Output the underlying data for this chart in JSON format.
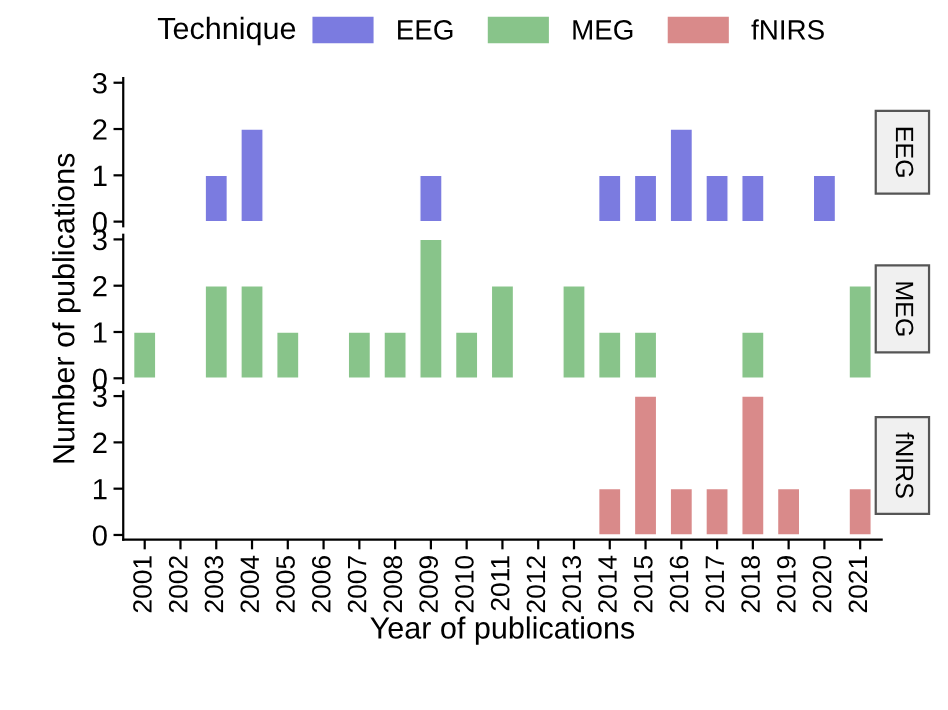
{
  "chart_data": [
    {
      "type": "bar",
      "legend_title": "Technique",
      "legend": "top",
      "categories": [
        "2001",
        "2002",
        "2003",
        "2004",
        "2005",
        "2006",
        "2007",
        "2008",
        "2009",
        "2010",
        "2011",
        "2012",
        "2013",
        "2014",
        "2015",
        "2016",
        "2017",
        "2018",
        "2019",
        "2020",
        "2021"
      ],
      "series": [
        {
          "name": "EEG",
          "color": "#7b7be0",
          "values": [
            null,
            null,
            1,
            2,
            null,
            null,
            null,
            null,
            1,
            null,
            null,
            null,
            null,
            1,
            1,
            2,
            1,
            1,
            null,
            1,
            null
          ]
        }
      ],
      "ylim": [
        -0.1,
        3.1
      ],
      "yticks": [
        0,
        1,
        2,
        3
      ],
      "tick_labels": "y",
      "grid": false
    },
    {
      "type": "bar",
      "ylabel": "Number of publications",
      "categories": [
        "2001",
        "2002",
        "2003",
        "2004",
        "2005",
        "2006",
        "2007",
        "2008",
        "2009",
        "2010",
        "2011",
        "2012",
        "2013",
        "2014",
        "2015",
        "2016",
        "2017",
        "2018",
        "2019",
        "2020",
        "2021"
      ],
      "series": [
        {
          "name": "MEG",
          "color": "#88c48a",
          "values": [
            1,
            null,
            2,
            2,
            1,
            null,
            1,
            1,
            3,
            1,
            2,
            null,
            2,
            1,
            1,
            null,
            null,
            1,
            null,
            null,
            2
          ]
        }
      ],
      "ylim": [
        -0.1,
        3.1
      ],
      "yticks": [
        0,
        1,
        2,
        3
      ],
      "tick_labels": "y",
      "grid": false
    },
    {
      "type": "bar",
      "xlabel": "Year of publications",
      "categories": [
        "2001",
        "2002",
        "2003",
        "2004",
        "2005",
        "2006",
        "2007",
        "2008",
        "2009",
        "2010",
        "2011",
        "2012",
        "2013",
        "2014",
        "2015",
        "2016",
        "2017",
        "2018",
        "2019",
        "2020",
        "2021"
      ],
      "series": [
        {
          "name": "fNIRS",
          "color": "#d98a8a",
          "values": [
            null,
            null,
            null,
            null,
            null,
            null,
            null,
            null,
            null,
            null,
            null,
            null,
            null,
            1,
            3,
            1,
            1,
            3,
            1,
            null,
            1
          ]
        }
      ],
      "ylim": [
        -0.1,
        3.1
      ],
      "yticks": [
        0,
        1,
        2,
        3
      ],
      "grid": false
    }
  ]
}
